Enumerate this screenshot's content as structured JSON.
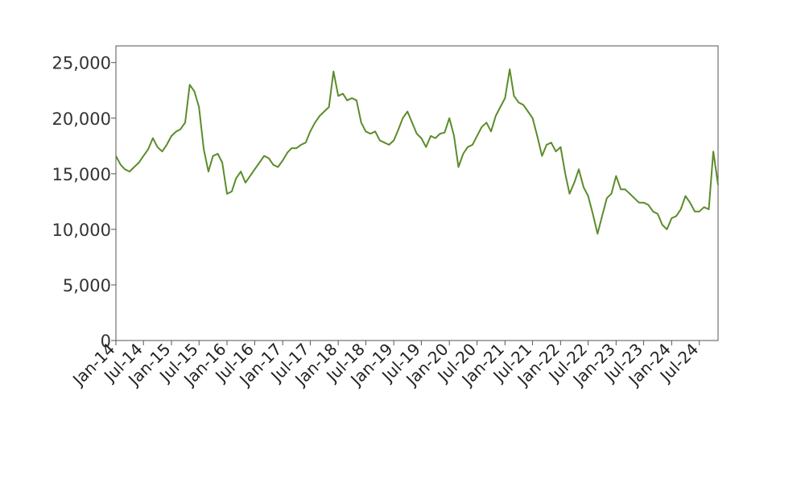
{
  "chart_data": {
    "type": "line",
    "title": "",
    "xlabel": "",
    "ylabel": "",
    "x_range": [
      "2014-01-01",
      "2024-11-01"
    ],
    "ylim": [
      0,
      26500
    ],
    "y_ticks": [
      0,
      5000,
      10000,
      15000,
      20000,
      25000
    ],
    "y_tick_labels": [
      "0",
      "5,000",
      "10,000",
      "15,000",
      "20,000",
      "25,000"
    ],
    "x_ticks": [
      "2014-01-01",
      "2014-07-01",
      "2015-01-01",
      "2015-07-01",
      "2016-01-01",
      "2016-07-01",
      "2017-01-01",
      "2017-07-01",
      "2018-01-01",
      "2018-07-01",
      "2019-01-01",
      "2019-07-01",
      "2020-01-01",
      "2020-07-01",
      "2021-01-01",
      "2021-07-01",
      "2022-01-01",
      "2022-07-01",
      "2023-01-01",
      "2023-07-01",
      "2024-01-01",
      "2024-07-01"
    ],
    "x_tick_labels": [
      "Jan-14",
      "Jul-14",
      "Jan-15",
      "Jul-15",
      "Jan-16",
      "Jul-16",
      "Jan-17",
      "Jul-17",
      "Jan-18",
      "Jul-18",
      "Jan-19",
      "Jul-19",
      "Jan-20",
      "Jul-20",
      "Jan-21",
      "Jul-21",
      "Jan-22",
      "Jul-22",
      "Jan-23",
      "Jul-23",
      "Jan-24",
      "Jul-24"
    ],
    "grid": false,
    "line_color": "#5b8c2a",
    "series": [
      {
        "x": [
          "2014-01-01",
          "2014-02-01",
          "2014-03-01",
          "2014-04-01",
          "2014-05-01",
          "2014-06-01",
          "2014-07-01",
          "2014-08-01",
          "2014-09-01",
          "2014-10-01",
          "2014-11-01",
          "2014-12-01",
          "2015-01-01",
          "2015-02-01",
          "2015-03-01",
          "2015-04-01",
          "2015-05-01",
          "2015-06-01",
          "2015-07-01",
          "2015-08-01",
          "2015-09-01",
          "2015-10-01",
          "2015-11-01",
          "2015-12-01",
          "2016-01-01",
          "2016-02-01",
          "2016-03-01",
          "2016-04-01",
          "2016-05-01",
          "2016-06-01",
          "2016-07-01",
          "2016-08-01",
          "2016-09-01",
          "2016-10-01",
          "2016-11-01",
          "2016-12-01",
          "2017-01-01",
          "2017-02-01",
          "2017-03-01",
          "2017-04-01",
          "2017-05-01",
          "2017-06-01",
          "2017-07-01",
          "2017-08-01",
          "2017-09-01",
          "2017-10-01",
          "2017-11-01",
          "2017-12-01",
          "2018-01-01",
          "2018-02-01",
          "2018-03-01",
          "2018-04-01",
          "2018-05-01",
          "2018-06-01",
          "2018-07-01",
          "2018-08-01",
          "2018-09-01",
          "2018-10-01",
          "2018-11-01",
          "2018-12-01",
          "2019-01-01",
          "2019-02-01",
          "2019-03-01",
          "2019-04-01",
          "2019-05-01",
          "2019-06-01",
          "2019-07-01",
          "2019-08-01",
          "2019-09-01",
          "2019-10-01",
          "2019-11-01",
          "2019-12-01",
          "2020-01-01",
          "2020-02-01",
          "2020-03-01",
          "2020-04-01",
          "2020-05-01",
          "2020-06-01",
          "2020-07-01",
          "2020-08-01",
          "2020-09-01",
          "2020-10-01",
          "2020-11-01",
          "2020-12-01",
          "2021-01-01",
          "2021-02-01",
          "2021-03-01",
          "2021-04-01",
          "2021-05-01",
          "2021-06-01",
          "2021-07-01",
          "2021-08-01",
          "2021-09-01",
          "2021-10-01",
          "2021-11-01",
          "2021-12-01",
          "2022-01-01",
          "2022-02-01",
          "2022-03-01",
          "2022-04-01",
          "2022-05-01",
          "2022-06-01",
          "2022-07-01",
          "2022-08-01",
          "2022-09-01",
          "2022-10-01",
          "2022-11-01",
          "2022-12-01",
          "2023-01-01",
          "2023-02-01",
          "2023-03-01",
          "2023-04-01",
          "2023-05-01",
          "2023-06-01",
          "2023-07-01",
          "2023-08-01",
          "2023-09-01",
          "2023-10-01",
          "2023-11-01",
          "2023-12-01",
          "2024-01-01",
          "2024-02-01",
          "2024-03-01",
          "2024-04-01",
          "2024-05-01",
          "2024-06-01",
          "2024-07-01",
          "2024-08-01",
          "2024-09-01",
          "2024-10-01",
          "2024-11-01"
        ],
        "values": [
          16600,
          15800,
          15400,
          15200,
          15600,
          16000,
          16600,
          17200,
          18200,
          17400,
          17000,
          17600,
          18400,
          18800,
          19000,
          19600,
          23000,
          22400,
          21000,
          17200,
          15200,
          16600,
          16800,
          16000,
          13200,
          13400,
          14600,
          15200,
          14200,
          14800,
          15400,
          16000,
          16600,
          16400,
          15800,
          15600,
          16200,
          16900,
          17300,
          17300,
          17600,
          17800,
          18800,
          19600,
          20200,
          20600,
          21000,
          24200,
          22000,
          22200,
          21600,
          21800,
          21600,
          19600,
          18800,
          18600,
          18800,
          18000,
          17800,
          17600,
          18000,
          19000,
          20000,
          20600,
          19600,
          18600,
          18200,
          17400,
          18400,
          18200,
          18600,
          18700,
          20000,
          18400,
          15600,
          16800,
          17400,
          17600,
          18400,
          19200,
          19600,
          18800,
          20200,
          21000,
          21800,
          24400,
          22000,
          21400,
          21200,
          20600,
          20000,
          18400,
          16600,
          17600,
          17800,
          17000,
          17400,
          15000,
          13200,
          14200,
          15400,
          13800,
          13000,
          11400,
          9600,
          11200,
          12800,
          13200,
          14800,
          13600,
          13600,
          13200,
          12800,
          12400,
          12400,
          12200,
          11600,
          11400,
          10400,
          10000,
          11000,
          11200,
          11800,
          13000,
          12400,
          11600,
          11600,
          12000,
          11800,
          17000,
          14000
        ]
      }
    ]
  }
}
